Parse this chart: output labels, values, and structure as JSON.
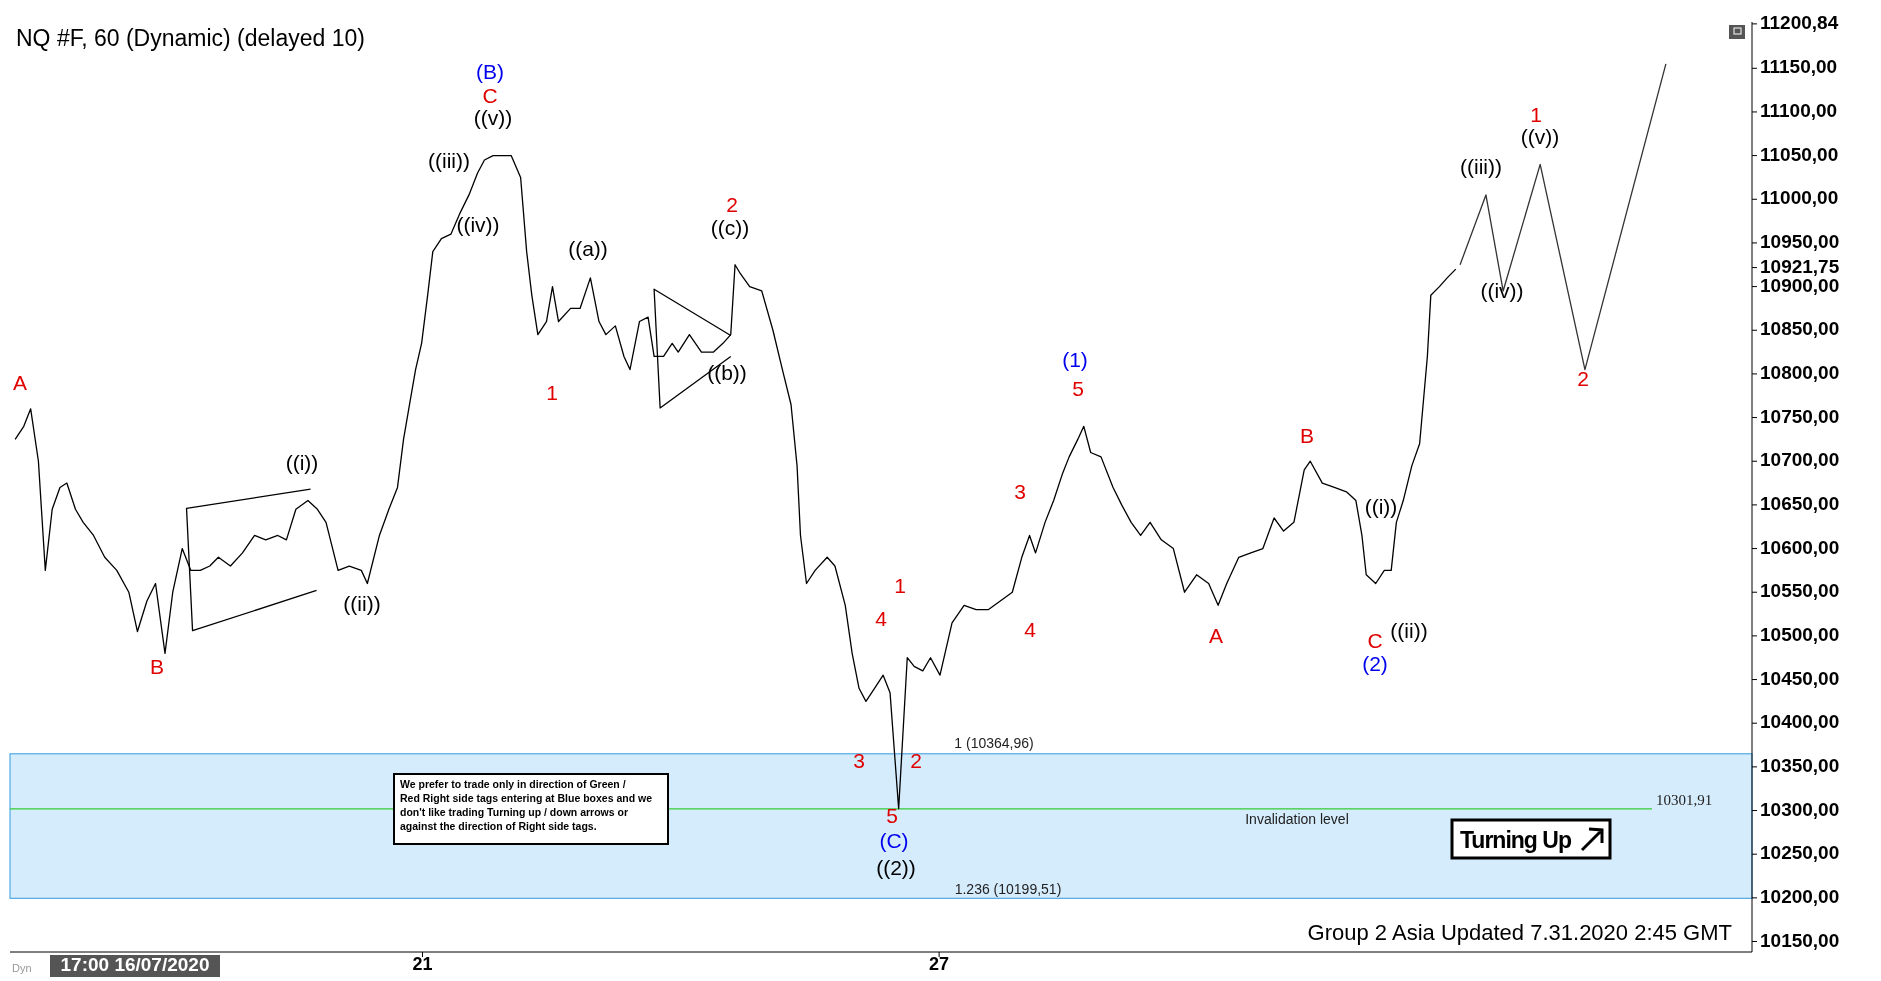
{
  "chart_data": {
    "type": "line",
    "title": "NQ #F, 60 (Dynamic) (delayed 10)",
    "xlim": [
      16.21,
      36.44
    ],
    "xticks": [
      21,
      27
    ],
    "ylim": [
      10138,
      11203
    ],
    "yticks": [
      {
        "value": 10150,
        "label": "10150,00"
      },
      {
        "value": 10200,
        "label": "10200,00"
      },
      {
        "value": 10250,
        "label": "10250,00"
      },
      {
        "value": 10300,
        "label": "10300,00"
      },
      {
        "value": 10350,
        "label": "10350,00"
      },
      {
        "value": 10400,
        "label": "10400,00"
      },
      {
        "value": 10450,
        "label": "10450,00"
      },
      {
        "value": 10500,
        "label": "10500,00"
      },
      {
        "value": 10550,
        "label": "10550,00"
      },
      {
        "value": 10600,
        "label": "10600,00"
      },
      {
        "value": 10650,
        "label": "10650,00"
      },
      {
        "value": 10700,
        "label": "10700,00"
      },
      {
        "value": 10750,
        "label": "10750,00"
      },
      {
        "value": 10800,
        "label": "10800,00"
      },
      {
        "value": 10850,
        "label": "10850,00"
      },
      {
        "value": 10900,
        "label": "10900,00"
      },
      {
        "value": 10921.75,
        "label": "10921,75"
      },
      {
        "value": 10950,
        "label": "10950,00"
      },
      {
        "value": 11000,
        "label": "11000,00"
      },
      {
        "value": 11050,
        "label": "11050,00"
      },
      {
        "value": 11100,
        "label": "11100,00"
      },
      {
        "value": 11150,
        "label": "11150,00"
      },
      {
        "value": 11200.84,
        "label": "11200,84"
      }
    ],
    "grid": false,
    "series": [
      {
        "color": "#000000",
        "x": [
          16.27,
          16.37,
          16.45,
          16.54,
          16.62,
          16.7,
          16.79,
          16.87,
          16.97,
          17.06,
          17.18,
          17.31,
          17.45,
          17.59,
          17.69,
          17.8,
          17.9,
          18.01,
          18.1,
          18.21,
          18.31,
          18.42,
          18.53,
          18.63,
          18.77,
          18.91,
          19.05,
          19.18,
          19.32,
          19.42,
          19.53,
          19.67,
          19.78,
          19.88,
          20.02,
          20.15,
          20.29,
          20.36,
          20.5,
          20.61,
          20.71,
          20.78,
          20.85,
          20.92,
          20.99,
          21.06,
          21.12,
          21.22,
          21.33,
          21.44,
          21.54,
          21.64,
          21.72,
          21.82,
          21.91,
          22.03,
          22.14,
          22.21,
          22.27,
          22.34,
          22.44,
          22.51,
          22.58,
          22.72,
          22.83,
          22.95,
          23.05,
          23.13,
          23.24,
          23.34,
          23.41,
          23.52,
          23.62,
          23.69,
          23.8,
          23.9,
          23.97,
          24.1,
          24.24,
          24.38,
          24.49,
          24.58,
          24.63,
          24.69,
          24.8,
          24.94,
          25.07,
          25.18,
          25.28,
          25.35,
          25.39,
          25.46,
          25.56,
          25.7,
          25.79,
          25.91,
          25.99,
          26.07,
          26.15,
          26.25,
          26.35,
          26.43,
          26.53,
          26.63,
          26.71,
          26.81,
          26.9,
          27.01,
          27.15,
          27.29,
          27.43,
          27.57,
          27.71,
          27.85,
          27.96,
          28.05,
          28.12,
          28.23,
          28.33,
          28.43,
          28.51,
          28.61,
          28.68,
          28.76,
          28.88,
          29.02,
          29.12,
          29.23,
          29.34,
          29.45,
          29.58,
          29.72,
          29.85,
          29.99,
          30.13,
          30.24,
          30.34,
          30.48,
          30.62,
          30.76,
          30.89,
          31.0,
          31.12,
          31.24,
          31.31,
          31.45,
          31.59,
          31.73,
          31.84,
          31.91,
          31.96,
          32.07,
          32.17,
          32.25,
          32.31,
          32.39,
          32.49,
          32.58,
          32.67,
          32.71,
          32.81,
          32.9,
          33.0
        ],
        "values": [
          10725,
          10740,
          10760,
          10700,
          10575,
          10645,
          10670,
          10675,
          10645,
          10630,
          10615,
          10590,
          10575,
          10550,
          10505,
          10540,
          10560,
          10480,
          10550,
          10600,
          10575,
          10575,
          10580,
          10590,
          10580,
          10595,
          10615,
          10610,
          10615,
          10610,
          10645,
          10655,
          10645,
          10630,
          10575,
          10580,
          10575,
          10560,
          10615,
          10645,
          10670,
          10725,
          10765,
          10805,
          10835,
          10890,
          10940,
          10955,
          10960,
          10985,
          11005,
          11030,
          11045,
          11050,
          11050,
          11050,
          11025,
          10940,
          10890,
          10845,
          10860,
          10900,
          10860,
          10875,
          10875,
          10910,
          10860,
          10845,
          10855,
          10820,
          10805,
          10860,
          10865,
          10820,
          10820,
          10835,
          10825,
          10845,
          10825,
          10825,
          10835,
          10845,
          10925,
          10915,
          10900,
          10895,
          10850,
          10805,
          10765,
          10695,
          10615,
          10560,
          10575,
          10590,
          10580,
          10535,
          10480,
          10440,
          10425,
          10440,
          10455,
          10435,
          10302,
          10475,
          10465,
          10460,
          10475,
          10455,
          10515,
          10535,
          10530,
          10530,
          10540,
          10550,
          10590,
          10615,
          10595,
          10630,
          10655,
          10685,
          10705,
          10725,
          10740,
          10710,
          10705,
          10670,
          10650,
          10630,
          10615,
          10630,
          10610,
          10600,
          10550,
          10570,
          10560,
          10535,
          10560,
          10590,
          10595,
          10600,
          10635,
          10620,
          10630,
          10690,
          10700,
          10675,
          10670,
          10665,
          10655,
          10615,
          10570,
          10560,
          10575,
          10575,
          10630,
          10655,
          10695,
          10720,
          10820,
          10890,
          10900,
          10910,
          10920
        ]
      },
      {
        "color": "#333333",
        "x": [
          33.05,
          33.35,
          33.55,
          33.98,
          34.5,
          35.44
        ],
        "values": [
          10925,
          11005,
          10895,
          11040,
          10805,
          11155
        ]
      },
      {
        "color": "#000000",
        "x": [
          19.7,
          18.26,
          18.33,
          19.77
        ],
        "values": [
          10668,
          10646,
          10506,
          10552
        ]
      },
      {
        "color": "#000000",
        "x": [
          24.58,
          23.69,
          23.76,
          24.58
        ],
        "values": [
          10844,
          10897,
          10761,
          10820
        ]
      }
    ],
    "ref_lines": [
      {
        "axis": "y",
        "value": 10301.91,
        "label": "10301,91",
        "color": "#33cc33"
      }
    ],
    "bands": [
      {
        "axis": "y",
        "from": 10199.51,
        "to": 10364.96,
        "color": "#b3dcfa"
      }
    ],
    "annotations": [
      "A",
      "B",
      "((i))",
      "((ii))",
      "(B)",
      "C",
      "((v))",
      "((iii))",
      "((iv))",
      "1",
      "((a))",
      "2",
      "((c))",
      "((b))",
      "1",
      "4",
      "3",
      "2",
      "5",
      "(C)",
      "((2))",
      "3",
      "4",
      "(1)",
      "5",
      "A",
      "B",
      "((i))",
      "C",
      "(2)",
      "((ii))",
      "((iii))",
      "((iv))",
      "1",
      "((v))",
      "2",
      "1 (10364,96)",
      "1.236 (10199,51)",
      "Invalidation level",
      "We prefer to trade only in direction of Green / Red Right side tags entering at Blue boxes and we don't like trading Turning up / down arrows or against the direction of Right side tags.",
      "Group 2 Asia Updated 7.31.2020 2:45 GMT",
      "Turning Up",
      "Dyn",
      "17:00 16/07/2020"
    ]
  }
}
